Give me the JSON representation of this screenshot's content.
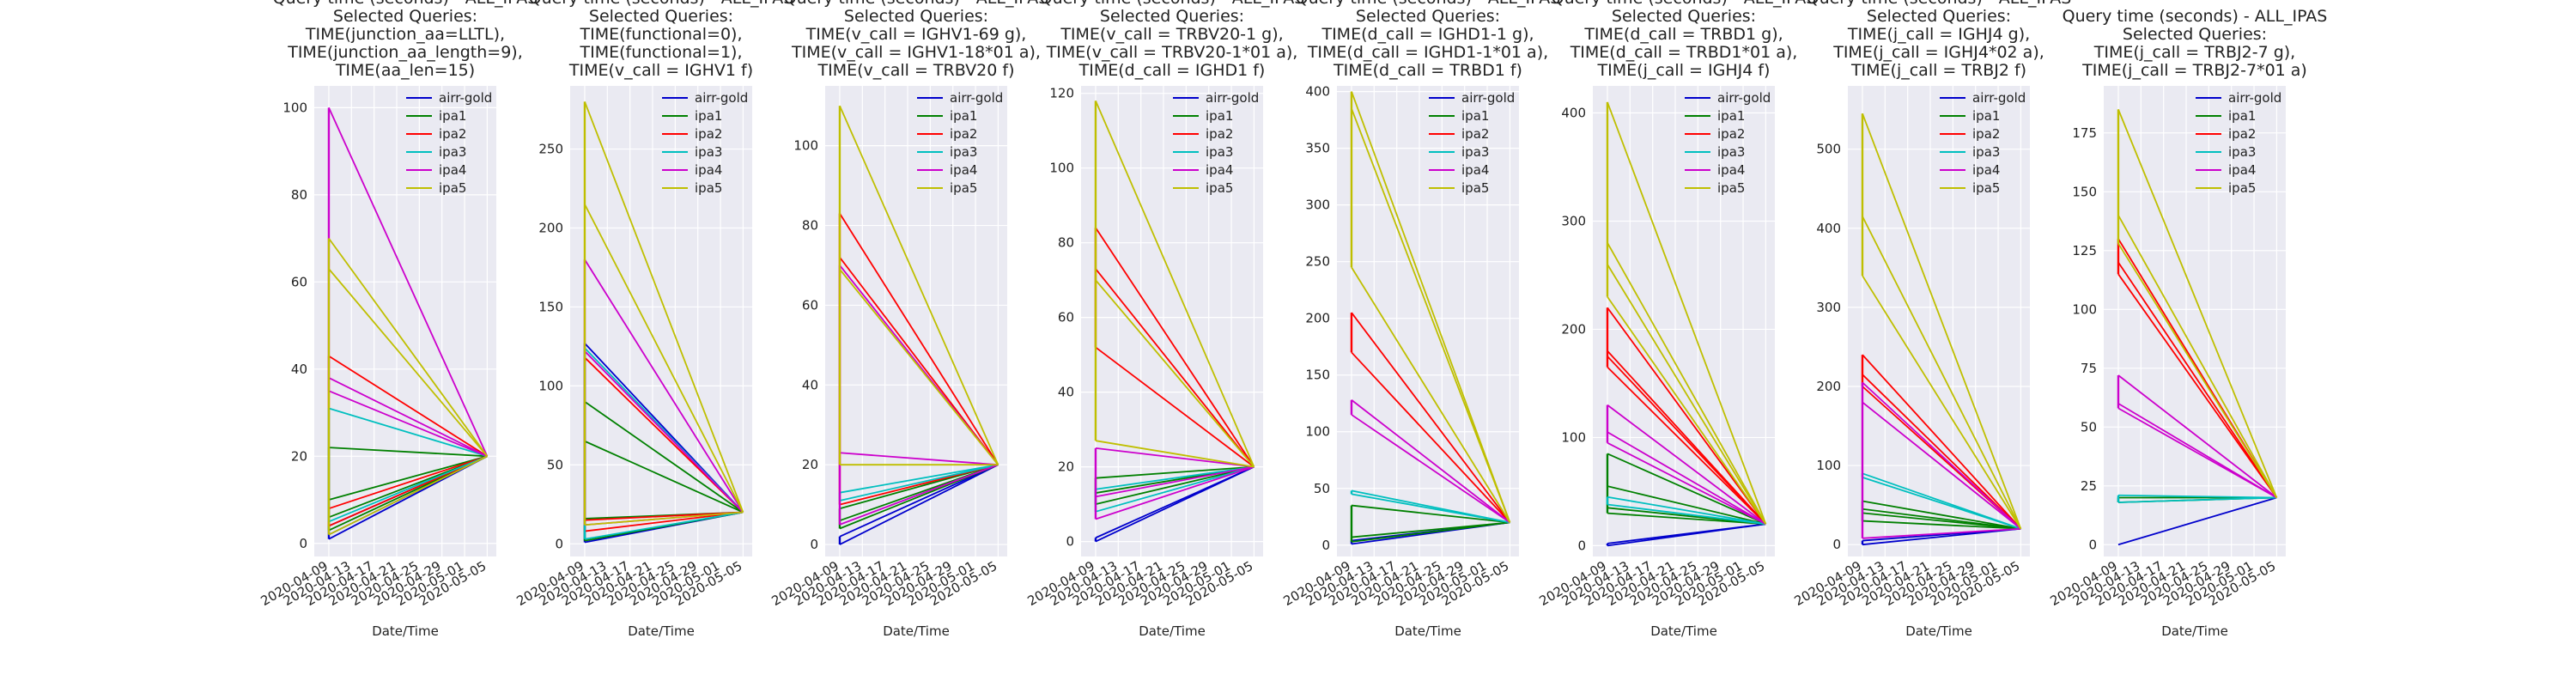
{
  "figure": {
    "background": "#ffffff",
    "plot_background": "#eaeaf2",
    "grid_color": "#ffffff"
  },
  "series_colors": {
    "airr-gold": "#0000cc",
    "ipa1": "#008000",
    "ipa2": "#ff0000",
    "ipa3": "#00bfbf",
    "ipa4": "#cc00cc",
    "ipa5": "#bfbf00"
  },
  "chart_data": [
    {
      "type": "line",
      "title_lines": [
        "Query time (seconds) - ALL_IPAS",
        "Selected Queries:",
        "TIME(junction_aa=LLTL),",
        "TIME(junction_aa_length=9),",
        "TIME(aa_len=15)"
      ],
      "xlabel": "Date/Time",
      "ylabel": "",
      "x_ticks": [
        "2020-04-09",
        "2020-04-13",
        "2020-04-17",
        "2020-04-21",
        "2020-04-25",
        "2020-04-29",
        "2020-05-01",
        "2020-05-05"
      ],
      "y_ticks": [
        0,
        20,
        40,
        60,
        80,
        100
      ],
      "ylim": [
        -3,
        105
      ],
      "grid": true,
      "legend_position": "top-right",
      "series": [
        {
          "name": "airr-gold",
          "start": [
            1,
            2,
            4
          ],
          "end": 20
        },
        {
          "name": "ipa1",
          "start": [
            22,
            10,
            6,
            3
          ],
          "end": 20
        },
        {
          "name": "ipa2",
          "start": [
            43,
            8,
            4
          ],
          "end": 20
        },
        {
          "name": "ipa3",
          "start": [
            31,
            5
          ],
          "end": 20
        },
        {
          "name": "ipa4",
          "start": [
            38,
            35,
            100
          ],
          "end": 20
        },
        {
          "name": "ipa5",
          "start": [
            63,
            70,
            2
          ],
          "end": 20
        }
      ]
    },
    {
      "type": "line",
      "title_lines": [
        "Query time (seconds) - ALL_IPAS",
        "Selected Queries:",
        "TIME(functional=0),",
        "TIME(functional=1),",
        "TIME(v_call = IGHV1 f)"
      ],
      "xlabel": "Date/Time",
      "ylabel": "",
      "x_ticks": [
        "2020-04-09",
        "2020-04-13",
        "2020-04-17",
        "2020-04-21",
        "2020-04-25",
        "2020-04-29",
        "2020-05-01",
        "2020-05-05"
      ],
      "y_ticks": [
        0,
        50,
        100,
        150,
        200,
        250
      ],
      "ylim": [
        -8,
        290
      ],
      "grid": true,
      "legend_position": "top-right",
      "series": [
        {
          "name": "airr-gold",
          "start": [
            127,
            1
          ],
          "end": 20
        },
        {
          "name": "ipa1",
          "start": [
            65,
            16,
            2,
            90
          ],
          "end": 20
        },
        {
          "name": "ipa2",
          "start": [
            118,
            15,
            8
          ],
          "end": 20
        },
        {
          "name": "ipa3",
          "start": [
            124,
            3
          ],
          "end": 20
        },
        {
          "name": "ipa4",
          "start": [
            122,
            12,
            180
          ],
          "end": 20
        },
        {
          "name": "ipa5",
          "start": [
            280,
            215,
            12
          ],
          "end": 20
        }
      ]
    },
    {
      "type": "line",
      "title_lines": [
        "Query time (seconds) - ALL_IPAS",
        "Selected Queries:",
        "TIME(v_call = IGHV1-69 g),",
        "TIME(v_call = IGHV1-18*01 a),",
        "TIME(v_call = TRBV20 f)"
      ],
      "xlabel": "Date/Time",
      "ylabel": "",
      "x_ticks": [
        "2020-04-09",
        "2020-04-13",
        "2020-04-17",
        "2020-04-21",
        "2020-04-25",
        "2020-04-29",
        "2020-05-01",
        "2020-05-05"
      ],
      "y_ticks": [
        0,
        20,
        40,
        60,
        80,
        100
      ],
      "ylim": [
        -3,
        115
      ],
      "grid": true,
      "legend_position": "top-right",
      "series": [
        {
          "name": "airr-gold",
          "start": [
            0,
            2
          ],
          "end": 20
        },
        {
          "name": "ipa1",
          "start": [
            9,
            6,
            4
          ],
          "end": 20
        },
        {
          "name": "ipa2",
          "start": [
            72,
            83,
            10
          ],
          "end": 20
        },
        {
          "name": "ipa3",
          "start": [
            13,
            11
          ],
          "end": 20
        },
        {
          "name": "ipa4",
          "start": [
            23,
            70,
            5
          ],
          "end": 20
        },
        {
          "name": "ipa5",
          "start": [
            69,
            110,
            20
          ],
          "end": 20
        }
      ]
    },
    {
      "type": "line",
      "title_lines": [
        "Query time (seconds) - ALL_IPAS",
        "Selected Queries:",
        "TIME(v_call = TRBV20-1 g),",
        "TIME(v_call = TRBV20-1*01  a),",
        "TIME(d_call = IGHD1 f)"
      ],
      "xlabel": "Date/Time",
      "ylabel": "",
      "x_ticks": [
        "2020-04-09",
        "2020-04-13",
        "2020-04-17",
        "2020-04-21",
        "2020-04-25",
        "2020-04-29",
        "2020-05-01",
        "2020-05-05"
      ],
      "y_ticks": [
        0,
        20,
        40,
        60,
        80,
        100,
        120
      ],
      "ylim": [
        -4,
        122
      ],
      "grid": true,
      "legend_position": "top-right",
      "series": [
        {
          "name": "airr-gold",
          "start": [
            0,
            1
          ],
          "end": 20
        },
        {
          "name": "ipa1",
          "start": [
            17,
            13,
            10
          ],
          "end": 20
        },
        {
          "name": "ipa2",
          "start": [
            52,
            73,
            84
          ],
          "end": 20
        },
        {
          "name": "ipa3",
          "start": [
            14,
            8
          ],
          "end": 20
        },
        {
          "name": "ipa4",
          "start": [
            25,
            12,
            6
          ],
          "end": 20
        },
        {
          "name": "ipa5",
          "start": [
            70,
            27,
            118
          ],
          "end": 20
        }
      ]
    },
    {
      "type": "line",
      "title_lines": [
        "Query time (seconds) - ALL_IPAS",
        "Selected Queries:",
        "TIME(d_call = IGHD1-1 g),",
        "TIME(d_call = IGHD1-1*01 a),",
        "TIME(d_call = TRBD1 f)"
      ],
      "xlabel": "Date/Time",
      "ylabel": "",
      "x_ticks": [
        "2020-04-09",
        "2020-04-13",
        "2020-04-17",
        "2020-04-21",
        "2020-04-25",
        "2020-04-29",
        "2020-05-01",
        "2020-05-05"
      ],
      "y_ticks": [
        0,
        50,
        100,
        150,
        200,
        250,
        300,
        350,
        400
      ],
      "ylim": [
        -10,
        405
      ],
      "grid": true,
      "legend_position": "top-right",
      "series": [
        {
          "name": "airr-gold",
          "start": [
            1,
            4
          ],
          "end": 20
        },
        {
          "name": "ipa1",
          "start": [
            35,
            7,
            3
          ],
          "end": 20
        },
        {
          "name": "ipa2",
          "start": [
            170,
            205
          ],
          "end": 20
        },
        {
          "name": "ipa3",
          "start": [
            48,
            45
          ],
          "end": 20
        },
        {
          "name": "ipa4",
          "start": [
            128,
            115
          ],
          "end": 20
        },
        {
          "name": "ipa5",
          "start": [
            245,
            385,
            400
          ],
          "end": 20
        }
      ]
    },
    {
      "type": "line",
      "title_lines": [
        "Query time (seconds) - ALL_IPAS",
        "Selected Queries:",
        "TIME(d_call = TRBD1 g),",
        "TIME(d_call = TRBD1*01 a),",
        "TIME(j_call = IGHJ4 f)"
      ],
      "xlabel": "Date/Time",
      "ylabel": "",
      "x_ticks": [
        "2020-04-09",
        "2020-04-13",
        "2020-04-17",
        "2020-04-21",
        "2020-04-25",
        "2020-04-29",
        "2020-05-01",
        "2020-05-05"
      ],
      "y_ticks": [
        0,
        100,
        200,
        300,
        400
      ],
      "ylim": [
        -10,
        425
      ],
      "grid": true,
      "legend_position": "top-right",
      "series": [
        {
          "name": "airr-gold",
          "start": [
            0,
            2
          ],
          "end": 20
        },
        {
          "name": "ipa1",
          "start": [
            55,
            35,
            85,
            30
          ],
          "end": 20
        },
        {
          "name": "ipa2",
          "start": [
            180,
            175,
            165,
            220
          ],
          "end": 20
        },
        {
          "name": "ipa3",
          "start": [
            45,
            38
          ],
          "end": 20
        },
        {
          "name": "ipa4",
          "start": [
            130,
            105,
            95
          ],
          "end": 20
        },
        {
          "name": "ipa5",
          "start": [
            260,
            230,
            280,
            410
          ],
          "end": 20
        }
      ]
    },
    {
      "type": "line",
      "title_lines": [
        "Query time (seconds) - ALL_IPAS",
        "Selected Queries:",
        "TIME(j_call = IGHJ4 g),",
        "TIME(j_call = IGHJ4*02 a),",
        "TIME(j_call = TRBJ2 f)"
      ],
      "xlabel": "Date/Time",
      "ylabel": "",
      "x_ticks": [
        "2020-04-09",
        "2020-04-13",
        "2020-04-17",
        "2020-04-21",
        "2020-04-25",
        "2020-04-29",
        "2020-05-01",
        "2020-05-05"
      ],
      "y_ticks": [
        0,
        100,
        200,
        300,
        400,
        500
      ],
      "ylim": [
        -15,
        580
      ],
      "grid": true,
      "legend_position": "top-right",
      "series": [
        {
          "name": "airr-gold",
          "start": [
            0,
            5
          ],
          "end": 20
        },
        {
          "name": "ipa1",
          "start": [
            55,
            45,
            40,
            30
          ],
          "end": 20
        },
        {
          "name": "ipa2",
          "start": [
            240,
            215,
            200
          ],
          "end": 20
        },
        {
          "name": "ipa3",
          "start": [
            90,
            85
          ],
          "end": 20
        },
        {
          "name": "ipa4",
          "start": [
            8,
            205,
            180
          ],
          "end": 20
        },
        {
          "name": "ipa5",
          "start": [
            415,
            545,
            340
          ],
          "end": 20
        }
      ]
    },
    {
      "type": "line",
      "title_lines": [
        "Query time (seconds) - ALL_IPAS",
        "Selected Queries:",
        "TIME(j_call = TRBJ2-7 g),",
        "TIME(j_call = TRBJ2-7*01 a)"
      ],
      "xlabel": "Date/Time",
      "ylabel": "",
      "x_ticks": [
        "2020-04-09",
        "2020-04-13",
        "2020-04-17",
        "2020-04-21",
        "2020-04-25",
        "2020-04-29",
        "2020-05-01",
        "2020-05-05"
      ],
      "y_ticks": [
        0,
        25,
        50,
        75,
        100,
        125,
        150,
        175
      ],
      "ylim": [
        -5,
        195
      ],
      "grid": true,
      "legend_position": "top-right",
      "series": [
        {
          "name": "airr-gold",
          "start": [
            0
          ],
          "end": 20
        },
        {
          "name": "ipa1",
          "start": [
            18,
            20
          ],
          "end": 20
        },
        {
          "name": "ipa2",
          "start": [
            120,
            115,
            130
          ],
          "end": 20
        },
        {
          "name": "ipa3",
          "start": [
            21,
            18
          ],
          "end": 20
        },
        {
          "name": "ipa4",
          "start": [
            58,
            60,
            72
          ],
          "end": 20
        },
        {
          "name": "ipa5",
          "start": [
            140,
            128,
            185
          ],
          "end": 20
        }
      ]
    }
  ]
}
